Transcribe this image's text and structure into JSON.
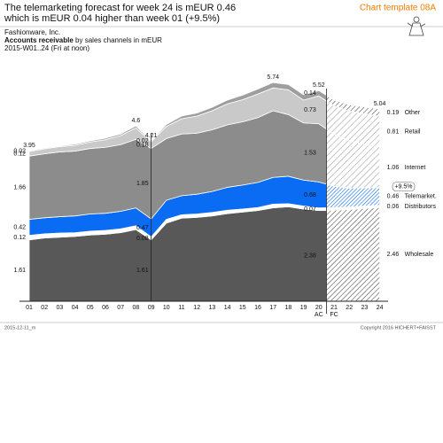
{
  "chart_data": {
    "type": "stacked_area",
    "title": [
      "The telemarketing forecast for week 24 is mEUR 0.46",
      "which is mEUR 0.04 higher than week 01 (+9.5%)"
    ],
    "template": "Chart template 08A",
    "company": "Fashionware, Inc.",
    "measure": "Accounts receivable",
    "measure_detail": "by sales channels in mEUR",
    "period": "2015-W01..24 (Fri at noon)",
    "categories": [
      "01",
      "02",
      "03",
      "04",
      "05",
      "06",
      "07",
      "08",
      "09",
      "10",
      "11",
      "12",
      "13",
      "14",
      "15",
      "16",
      "17",
      "18",
      "19",
      "20",
      "21",
      "22",
      "23",
      "24"
    ],
    "actual_label": "AC",
    "forecast_label": "FC",
    "forecast_start": 20,
    "label_columns": [
      0,
      8,
      19,
      23
    ],
    "series": [
      {
        "name": "Wholesale",
        "color": "#585858",
        "values": [
          1.61,
          1.66,
          1.68,
          1.7,
          1.74,
          1.76,
          1.8,
          1.88,
          1.61,
          2.05,
          2.18,
          2.2,
          2.24,
          2.3,
          2.34,
          2.38,
          2.45,
          2.48,
          2.42,
          2.38,
          2.39,
          2.41,
          2.44,
          2.46
        ]
      },
      {
        "name": "Distributors",
        "color": "#ffffff",
        "values": [
          0.12,
          0.11,
          0.11,
          0.1,
          0.1,
          0.1,
          0.1,
          0.1,
          0.08,
          0.1,
          0.09,
          0.09,
          0.09,
          0.09,
          0.08,
          0.08,
          0.1,
          0.08,
          0.08,
          0.07,
          0.07,
          0.06,
          0.06,
          0.06
        ]
      },
      {
        "name": "Telemarket.",
        "color": "#0a6cf2",
        "values": [
          0.42,
          0.42,
          0.43,
          0.44,
          0.45,
          0.45,
          0.46,
          0.47,
          0.47,
          0.5,
          0.5,
          0.52,
          0.55,
          0.6,
          0.63,
          0.66,
          0.7,
          0.72,
          0.68,
          0.68,
          0.56,
          0.5,
          0.48,
          0.46
        ]
      },
      {
        "name": "Internet",
        "color": "#8c8c8c",
        "values": [
          1.66,
          1.68,
          1.7,
          1.7,
          1.72,
          1.73,
          1.75,
          1.8,
          1.85,
          1.62,
          1.62,
          1.6,
          1.62,
          1.64,
          1.66,
          1.7,
          1.75,
          1.62,
          1.5,
          1.53,
          1.36,
          1.24,
          1.14,
          1.06
        ]
      },
      {
        "name": "Retail",
        "color": "#c9c9c9",
        "values": [
          0.12,
          0.13,
          0.14,
          0.15,
          0.17,
          0.2,
          0.24,
          0.3,
          0.18,
          0.32,
          0.4,
          0.45,
          0.5,
          0.55,
          0.58,
          0.62,
          0.6,
          0.65,
          0.6,
          0.73,
          0.75,
          0.78,
          0.8,
          0.81
        ]
      },
      {
        "name": "Other",
        "color": "#9e9e9e",
        "values": [
          0.02,
          0.02,
          0.02,
          0.03,
          0.03,
          0.04,
          0.04,
          0.05,
          0.02,
          0.05,
          0.07,
          0.08,
          0.09,
          0.1,
          0.12,
          0.13,
          0.14,
          0.14,
          0.14,
          0.14,
          0.15,
          0.17,
          0.18,
          0.19
        ]
      }
    ],
    "totals": [
      3.95,
      null,
      null,
      null,
      null,
      null,
      null,
      4.6,
      4.21,
      null,
      null,
      null,
      null,
      null,
      null,
      null,
      5.74,
      null,
      null,
      5.52,
      null,
      null,
      null,
      5.04
    ],
    "annotation": "+9.5%",
    "footer_left": "2015-12-11_m",
    "footer_right": "Copyright 2016 HICHERT+FAISST"
  }
}
